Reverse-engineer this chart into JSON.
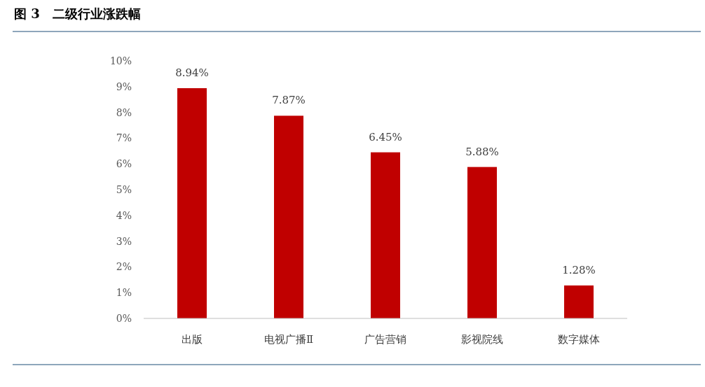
{
  "chart_data": {
    "type": "bar",
    "title": "图 3　二级行业涨跌幅",
    "categories": [
      "出版",
      "电视广播Ⅱ",
      "广告营销",
      "影视院线",
      "数字媒体"
    ],
    "values": [
      8.94,
      7.87,
      6.45,
      5.88,
      1.28
    ],
    "value_labels": [
      "8.94%",
      "7.87%",
      "6.45%",
      "5.88%",
      "1.28%"
    ],
    "color": "#c00000",
    "ylim": [
      0,
      10
    ],
    "yticks": [
      {
        "value": 0,
        "label": "0%"
      },
      {
        "value": 1,
        "label": "1%"
      },
      {
        "value": 2,
        "label": "2%"
      },
      {
        "value": 3,
        "label": "3%"
      },
      {
        "value": 4,
        "label": "4%"
      },
      {
        "value": 5,
        "label": "5%"
      },
      {
        "value": 6,
        "label": "6%"
      },
      {
        "value": 7,
        "label": "7%"
      },
      {
        "value": 8,
        "label": "8%"
      },
      {
        "value": 9,
        "label": "9%"
      },
      {
        "value": 10,
        "label": "10%"
      }
    ]
  }
}
